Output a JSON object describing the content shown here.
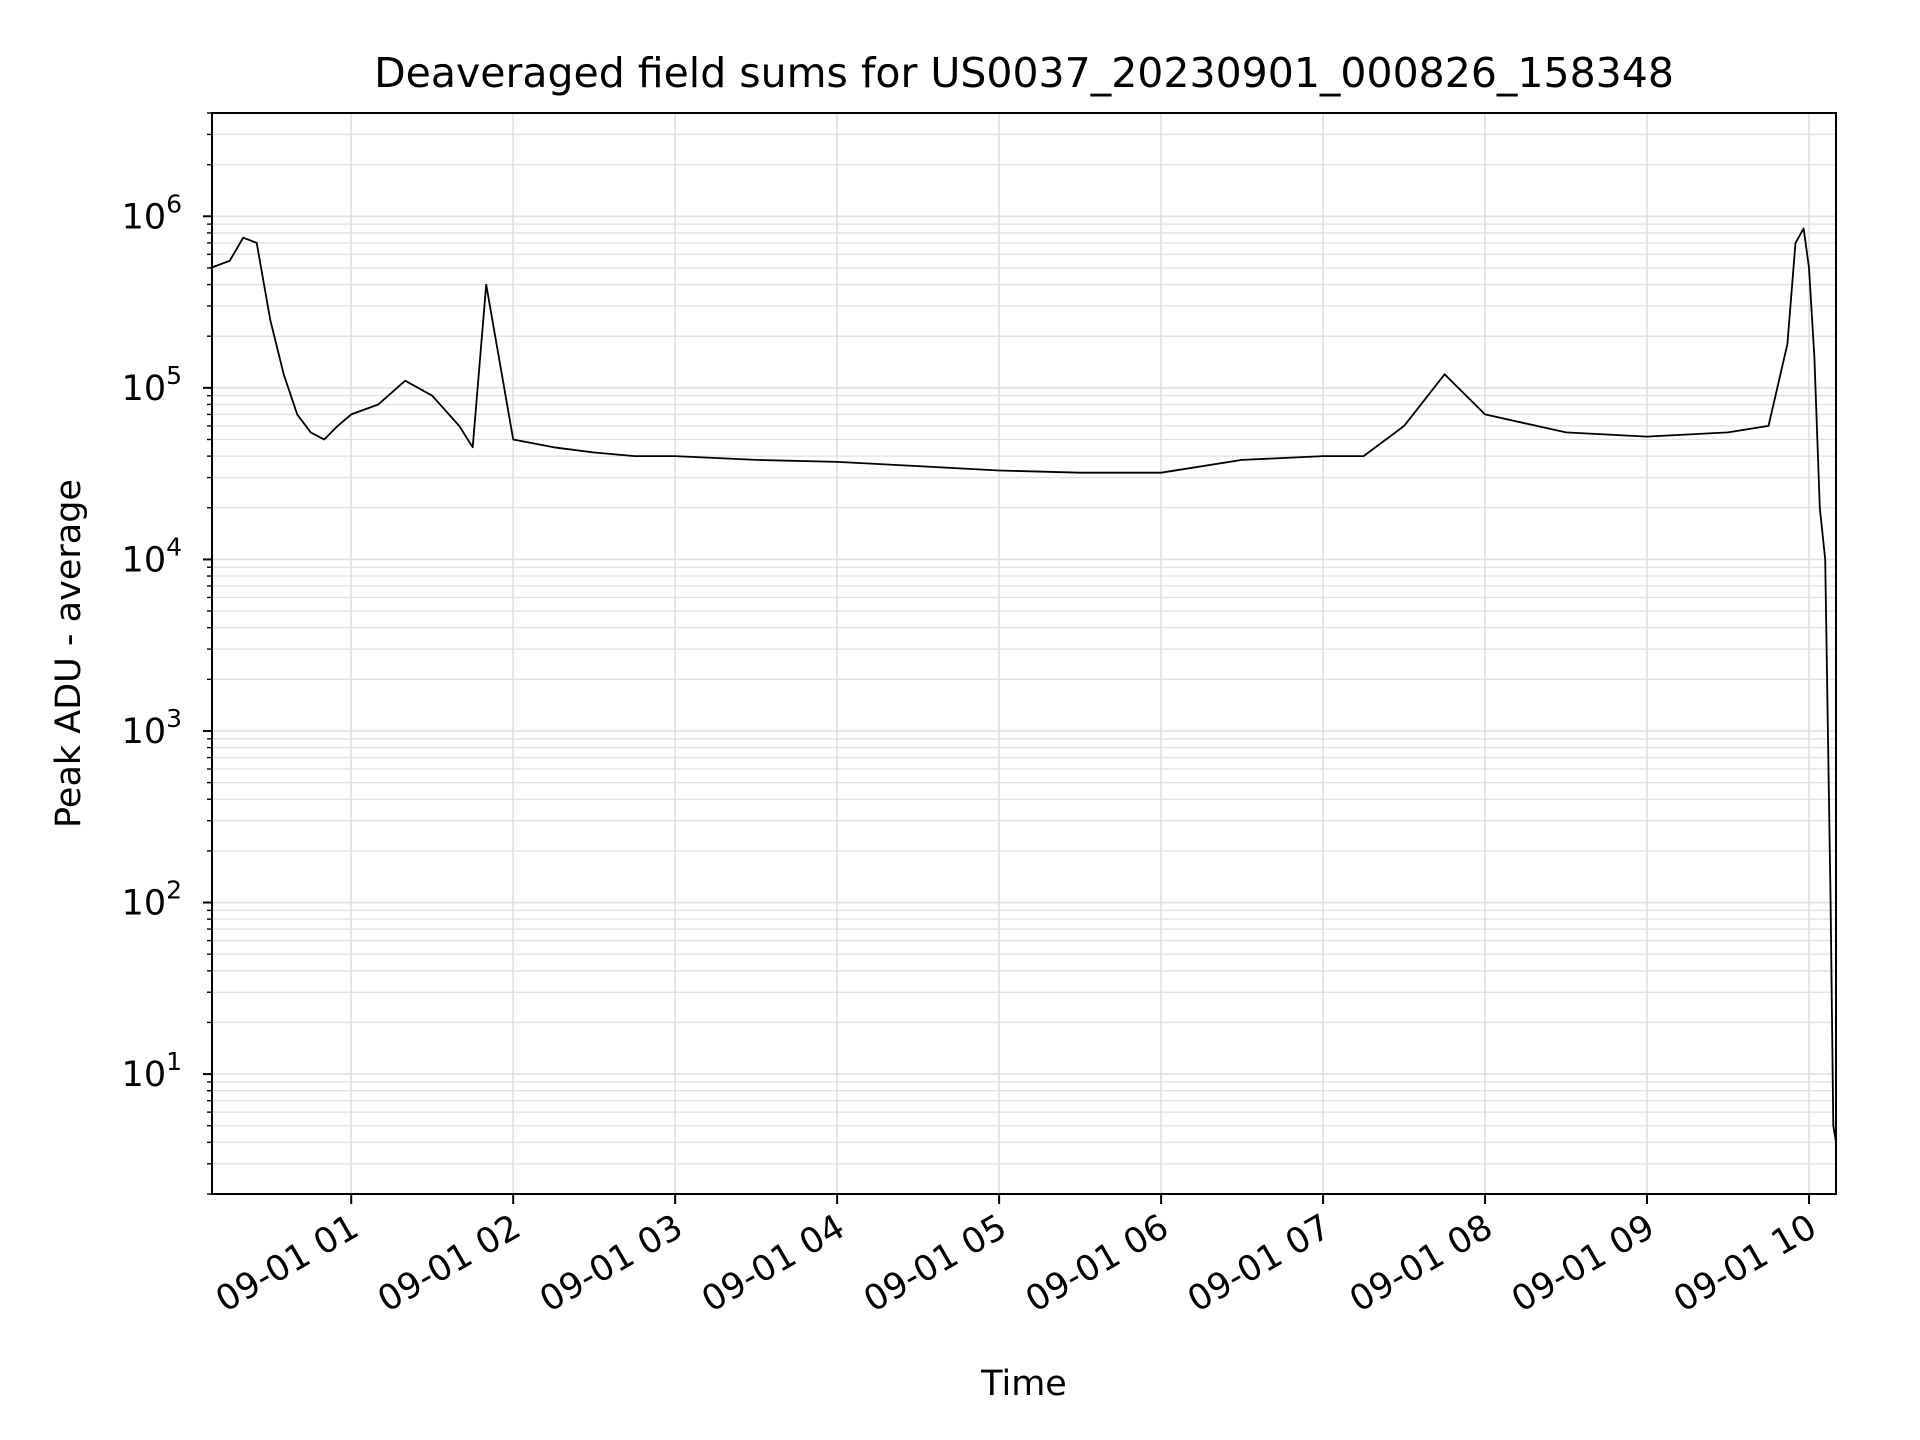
{
  "chart_data": {
    "type": "line",
    "title": "Deaveraged field sums for US0037_20230901_000826_158348",
    "xlabel": "Time",
    "ylabel": "Peak ADU - average",
    "yscale": "log",
    "ylim": [
      2,
      4000000
    ],
    "xlim": [
      "2023-09-01 00:08:26",
      "2023-09-01 10:10:00"
    ],
    "grid": true,
    "xticks": [
      {
        "value": "2023-09-01 01:00",
        "label": "09-01 01"
      },
      {
        "value": "2023-09-01 02:00",
        "label": "09-01 02"
      },
      {
        "value": "2023-09-01 03:00",
        "label": "09-01 03"
      },
      {
        "value": "2023-09-01 04:00",
        "label": "09-01 04"
      },
      {
        "value": "2023-09-01 05:00",
        "label": "09-01 05"
      },
      {
        "value": "2023-09-01 06:00",
        "label": "09-01 06"
      },
      {
        "value": "2023-09-01 07:00",
        "label": "09-01 07"
      },
      {
        "value": "2023-09-01 08:00",
        "label": "09-01 08"
      },
      {
        "value": "2023-09-01 09:00",
        "label": "09-01 09"
      },
      {
        "value": "2023-09-01 10:00",
        "label": "09-01 10"
      }
    ],
    "yticks": [
      {
        "value": 10,
        "base": "10",
        "exp": "1"
      },
      {
        "value": 100,
        "base": "10",
        "exp": "2"
      },
      {
        "value": 1000,
        "base": "10",
        "exp": "3"
      },
      {
        "value": 10000,
        "base": "10",
        "exp": "4"
      },
      {
        "value": 100000,
        "base": "10",
        "exp": "5"
      },
      {
        "value": 1000000,
        "base": "10",
        "exp": "6"
      }
    ],
    "line_color": "#000000",
    "grid_color": "#e0e0e0",
    "series": [
      {
        "x": [
          "2023-09-01 00:08",
          "2023-09-01 00:15",
          "2023-09-01 00:20",
          "2023-09-01 00:25",
          "2023-09-01 00:30",
          "2023-09-01 00:35",
          "2023-09-01 00:40",
          "2023-09-01 00:45",
          "2023-09-01 00:50",
          "2023-09-01 00:55",
          "2023-09-01 01:00",
          "2023-09-01 01:10",
          "2023-09-01 01:20",
          "2023-09-01 01:30",
          "2023-09-01 01:40",
          "2023-09-01 01:45",
          "2023-09-01 01:50",
          "2023-09-01 02:00",
          "2023-09-01 02:15",
          "2023-09-01 02:30",
          "2023-09-01 02:45",
          "2023-09-01 03:00",
          "2023-09-01 03:30",
          "2023-09-01 04:00",
          "2023-09-01 04:30",
          "2023-09-01 05:00",
          "2023-09-01 05:30",
          "2023-09-01 06:00",
          "2023-09-01 06:30",
          "2023-09-01 07:00",
          "2023-09-01 07:15",
          "2023-09-01 07:30",
          "2023-09-01 07:45",
          "2023-09-01 08:00",
          "2023-09-01 08:30",
          "2023-09-01 09:00",
          "2023-09-01 09:30",
          "2023-09-01 09:45",
          "2023-09-01 09:52",
          "2023-09-01 09:55",
          "2023-09-01 09:58",
          "2023-09-01 10:00",
          "2023-09-01 10:02",
          "2023-09-01 10:04",
          "2023-09-01 10:06",
          "2023-09-01 10:07",
          "2023-09-01 10:08",
          "2023-09-01 10:09",
          "2023-09-01 10:10"
        ],
        "y": [
          500000,
          550000,
          750000,
          700000,
          250000,
          120000,
          70000,
          55000,
          50000,
          60000,
          70000,
          80000,
          110000,
          90000,
          60000,
          45000,
          400000,
          50000,
          45000,
          42000,
          40000,
          40000,
          38000,
          37000,
          35000,
          33000,
          32000,
          32000,
          38000,
          40000,
          40000,
          60000,
          120000,
          70000,
          55000,
          52000,
          55000,
          60000,
          180000,
          700000,
          850000,
          500000,
          150000,
          20000,
          10000,
          1000,
          100,
          5,
          4
        ]
      }
    ]
  }
}
